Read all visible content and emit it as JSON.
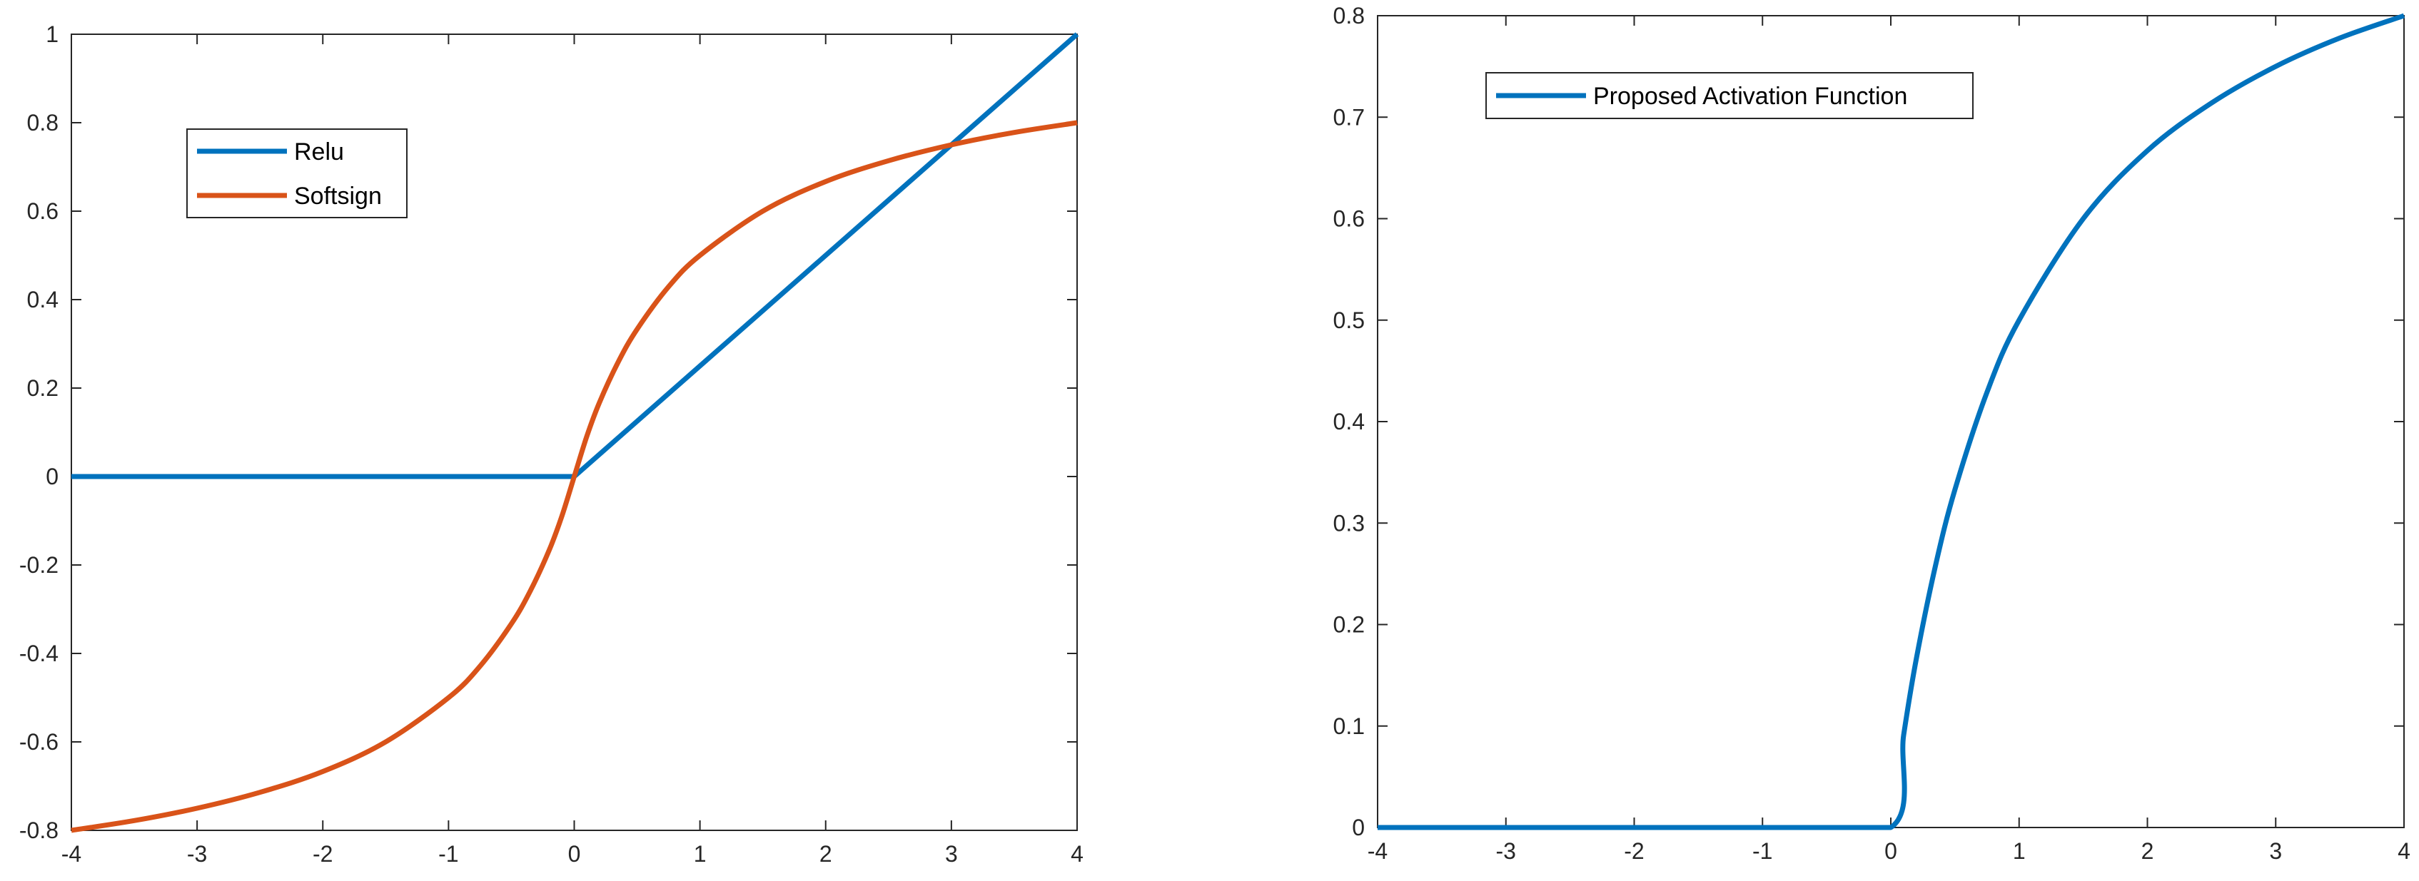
{
  "chart_data": [
    {
      "type": "line",
      "title": "",
      "xlabel": "",
      "ylabel": "",
      "xlim": [
        -4,
        4
      ],
      "ylim": [
        -0.8,
        1
      ],
      "x_ticks": [
        -4,
        -3,
        -2,
        -1,
        0,
        1,
        2,
        3,
        4
      ],
      "x_tick_labels": [
        "-4",
        "-3",
        "-2",
        "-1",
        "0",
        "1",
        "2",
        "3",
        "4"
      ],
      "y_ticks": [
        -0.8,
        -0.6,
        -0.4,
        -0.2,
        0,
        0.2,
        0.4,
        0.6,
        0.8,
        1
      ],
      "y_tick_labels": [
        "-0.8",
        "-0.6",
        "-0.4",
        "-0.2",
        "0",
        "0.2",
        "0.4",
        "0.6",
        "0.8",
        "1"
      ],
      "grid": false,
      "legend_position": "top-left",
      "series": [
        {
          "name": "Relu",
          "color": "#0072BD",
          "x": [
            -4,
            -3,
            -2,
            -1,
            0,
            1,
            2,
            3,
            4
          ],
          "y": [
            0,
            0,
            0,
            0,
            0,
            0.25,
            0.5,
            0.75,
            1
          ]
        },
        {
          "name": "Softsign",
          "color": "#D95319",
          "x": [
            -4,
            -3.5,
            -3,
            -2.5,
            -2,
            -1.5,
            -1,
            -0.75,
            -0.5,
            -0.35,
            -0.2,
            -0.1,
            0,
            0.1,
            0.2,
            0.35,
            0.5,
            0.75,
            1,
            1.5,
            2,
            2.5,
            3,
            3.5,
            4
          ],
          "y": [
            -0.8,
            -0.778,
            -0.75,
            -0.714,
            -0.667,
            -0.6,
            -0.5,
            -0.429,
            -0.333,
            -0.259,
            -0.167,
            -0.091,
            0,
            0.091,
            0.167,
            0.259,
            0.333,
            0.429,
            0.5,
            0.6,
            0.667,
            0.714,
            0.75,
            0.778,
            0.8
          ]
        }
      ]
    },
    {
      "type": "line",
      "title": "",
      "xlabel": "",
      "ylabel": "",
      "xlim": [
        -4,
        4
      ],
      "ylim": [
        0,
        0.8
      ],
      "x_ticks": [
        -4,
        -3,
        -2,
        -1,
        0,
        1,
        2,
        3,
        4
      ],
      "x_tick_labels": [
        "-4",
        "-3",
        "-2",
        "-1",
        "0",
        "1",
        "2",
        "3",
        "4"
      ],
      "y_ticks": [
        0,
        0.1,
        0.2,
        0.3,
        0.4,
        0.5,
        0.6,
        0.7,
        0.8
      ],
      "y_tick_labels": [
        "0",
        "0.1",
        "0.2",
        "0.3",
        "0.4",
        "0.5",
        "0.6",
        "0.7",
        "0.8"
      ],
      "grid": false,
      "legend_position": "top-left",
      "series": [
        {
          "name": "Proposed Activation Function",
          "color": "#0072BD",
          "x": [
            -4,
            -3,
            -2,
            -1,
            0,
            0.1,
            0.2,
            0.35,
            0.5,
            0.75,
            1,
            1.5,
            2,
            2.5,
            3,
            3.5,
            4
          ],
          "y": [
            0,
            0,
            0,
            0,
            0,
            0.091,
            0.167,
            0.259,
            0.333,
            0.429,
            0.5,
            0.6,
            0.667,
            0.714,
            0.75,
            0.778,
            0.8
          ]
        }
      ]
    }
  ]
}
